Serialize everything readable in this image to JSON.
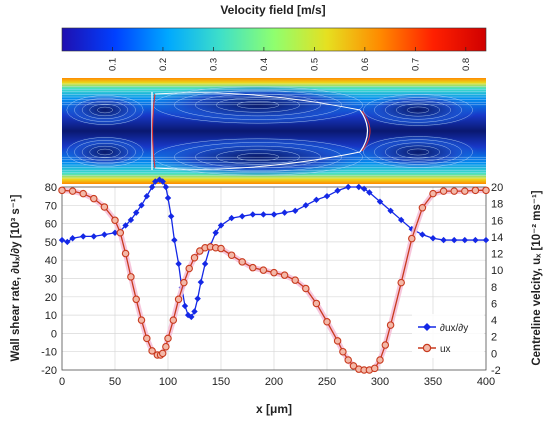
{
  "colorbar": {
    "title": "Velocity field [m/s]",
    "ticks": [
      "0.1",
      "0.2",
      "0.3",
      "0.4",
      "0.5",
      "0.6",
      "0.7",
      "0.8"
    ],
    "tick_values": [
      0.1,
      0.2,
      0.3,
      0.4,
      0.5,
      0.6,
      0.7,
      0.8
    ],
    "range": [
      0.0,
      0.84
    ],
    "colors": [
      "#1f0fb0",
      "#0040ff",
      "#00a8ff",
      "#3fe0c8",
      "#8fff6f",
      "#e6e020",
      "#ff8a00",
      "#ff2000",
      "#d00000"
    ]
  },
  "chart_data": {
    "type": "line",
    "xlabel": "x [μm]",
    "ylabel_left": "Wall shear rate, ∂uₓ/∂y [10³ s⁻¹]",
    "ylabel_right": "Centreline velcity, uₓ [10⁻² ms⁻¹]",
    "xlim": [
      0,
      400
    ],
    "ylim_left": [
      -20,
      80
    ],
    "ylim_right": [
      -2,
      20
    ],
    "xticks": [
      "0",
      "50",
      "100",
      "150",
      "200",
      "250",
      "300",
      "350",
      "400"
    ],
    "yticks_left": [
      "-20",
      "-10",
      "0",
      "10",
      "20",
      "30",
      "40",
      "50",
      "60",
      "70",
      "80"
    ],
    "yticks_right": [
      "-2",
      "0",
      "2",
      "4",
      "6",
      "8",
      "10",
      "12",
      "14",
      "16",
      "18",
      "20"
    ],
    "grid": true,
    "legend_position": "bottom-right",
    "series": [
      {
        "name": "∂ux/∂y",
        "axis": "left",
        "color": "#1428e6",
        "marker": "diamond",
        "x": [
          0,
          5,
          10,
          20,
          30,
          40,
          50,
          55,
          60,
          65,
          70,
          75,
          80,
          85,
          88,
          92,
          95,
          98,
          100,
          103,
          106,
          110,
          113,
          116,
          119,
          122,
          125,
          128,
          131,
          135,
          140,
          145,
          150,
          160,
          170,
          180,
          190,
          200,
          210,
          220,
          230,
          240,
          250,
          260,
          270,
          280,
          285,
          290,
          300,
          310,
          320,
          330,
          340,
          350,
          360,
          370,
          380,
          390,
          400
        ],
        "y": [
          51,
          50,
          52,
          53,
          53,
          54,
          55,
          56,
          59,
          62,
          66,
          70,
          75,
          80,
          83,
          84,
          83,
          80,
          74,
          64,
          51,
          38,
          25,
          15,
          10,
          9,
          12,
          19,
          28,
          38,
          48,
          55,
          59,
          63,
          64,
          65,
          65,
          65,
          66,
          67,
          70,
          73,
          75,
          78,
          80,
          80,
          79,
          77,
          72,
          67,
          62,
          57,
          54,
          52,
          51,
          51,
          51,
          51,
          51
        ]
      },
      {
        "name": "ux",
        "axis": "right",
        "color": "#c83a1e",
        "marker": "circle",
        "x": [
          0,
          10,
          20,
          30,
          40,
          50,
          55,
          60,
          65,
          70,
          75,
          80,
          85,
          90,
          93,
          95,
          98,
          100,
          105,
          110,
          115,
          120,
          125,
          130,
          135,
          140,
          145,
          150,
          160,
          170,
          180,
          190,
          200,
          210,
          220,
          230,
          240,
          250,
          260,
          265,
          270,
          275,
          280,
          285,
          290,
          295,
          300,
          305,
          310,
          320,
          330,
          340,
          350,
          360,
          370,
          380,
          390,
          400
        ],
        "y": [
          19.6,
          19.5,
          19.2,
          18.6,
          17.6,
          16.0,
          14.5,
          12.0,
          9.2,
          6.5,
          4.0,
          1.8,
          0.3,
          -0.2,
          -0.2,
          0.0,
          0.8,
          1.8,
          4.0,
          6.5,
          8.5,
          10.2,
          11.5,
          12.3,
          12.7,
          12.8,
          12.7,
          12.6,
          11.8,
          11.0,
          10.3,
          10.0,
          9.7,
          9.4,
          8.8,
          7.8,
          6.0,
          3.8,
          1.5,
          0.2,
          -0.8,
          -1.5,
          -1.9,
          -2.0,
          -2.0,
          -1.8,
          -0.8,
          1.0,
          3.4,
          8.5,
          13.8,
          17.5,
          19.2,
          19.5,
          19.5,
          19.5,
          19.6,
          19.6
        ]
      }
    ]
  }
}
